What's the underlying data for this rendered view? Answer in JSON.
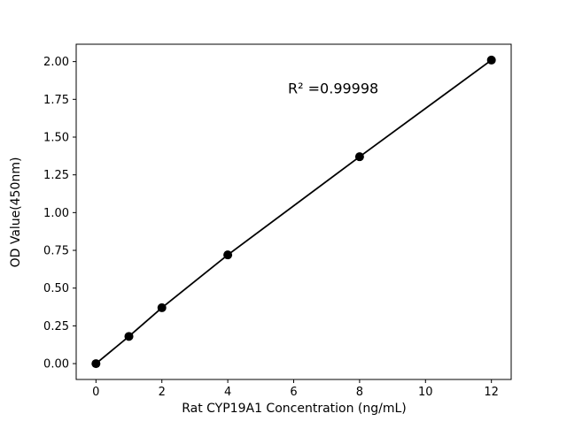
{
  "figure": {
    "background": "#ffffff"
  },
  "chart_data": {
    "type": "scatter",
    "title": "",
    "xlabel": "Rat CYP19A1 Concentration (ng/mL)",
    "ylabel": "OD Value(450nm)",
    "x": [
      0,
      1,
      2,
      4,
      8,
      12
    ],
    "y": [
      0.0,
      0.18,
      0.37,
      0.72,
      1.37,
      2.01
    ],
    "line_through_points": true,
    "marker": "circle",
    "marker_color": "#000000",
    "line_color": "#000000",
    "grid": false,
    "xlim": [
      -0.6,
      12.6
    ],
    "ylim": [
      -0.105,
      2.115
    ],
    "xticks": [
      0,
      2,
      4,
      6,
      8,
      10,
      12
    ],
    "xtick_labels": [
      "0",
      "2",
      "4",
      "6",
      "8",
      "10",
      "12"
    ],
    "yticks": [
      0.0,
      0.25,
      0.5,
      0.75,
      1.0,
      1.25,
      1.5,
      1.75,
      2.0
    ],
    "ytick_labels": [
      "0.00",
      "0.25",
      "0.50",
      "0.75",
      "1.00",
      "1.25",
      "1.50",
      "1.75",
      "2.00"
    ],
    "annotation": {
      "text": "R² =0.99998",
      "x": 7.2,
      "y": 1.79
    }
  }
}
